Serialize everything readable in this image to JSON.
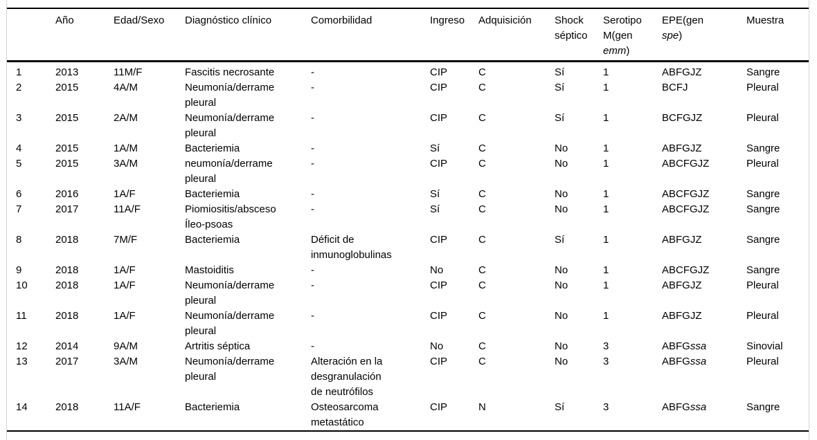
{
  "table": {
    "columns": [
      {
        "key": "num",
        "label": ""
      },
      {
        "key": "ano",
        "label": "Año"
      },
      {
        "key": "edad",
        "label": "Edad/Sexo"
      },
      {
        "key": "dx",
        "label": "Diagnóstico clínico"
      },
      {
        "key": "comorb",
        "label": "Comorbilidad"
      },
      {
        "key": "ingreso",
        "label": "Ingreso"
      },
      {
        "key": "adq",
        "label": "Adquisición"
      },
      {
        "key": "shock",
        "label": "Shock\nséptico"
      },
      {
        "key": "sero",
        "label_pre": "Serotipo\nM(gen\n",
        "label_italic": "emm",
        "label_post": ")"
      },
      {
        "key": "epe",
        "label_pre": "EPE(gen\n",
        "label_italic": "spe",
        "label_post": ")"
      },
      {
        "key": "muestra",
        "label": "Muestra"
      }
    ],
    "rows": [
      {
        "num": "1",
        "ano": "2013",
        "edad": "11M/F",
        "dx": "Fascitis necrosante",
        "comorb": "-",
        "ingreso": "CIP",
        "adq": "C",
        "shock": "Sí",
        "sero": "1",
        "epe": "ABFGJZ",
        "epe_italic": "",
        "muestra": "Sangre"
      },
      {
        "num": "2",
        "ano": "2015",
        "edad": "4A/M",
        "dx": "Neumonía/derrame\npleural",
        "comorb": "-",
        "ingreso": "CIP",
        "adq": "C",
        "shock": "Sí",
        "sero": "1",
        "epe": "BCFJ",
        "epe_italic": "",
        "muestra": "Pleural"
      },
      {
        "num": "3",
        "ano": "2015",
        "edad": "2A/M",
        "dx": "Neumonía/derrame\npleural",
        "comorb": "-",
        "ingreso": "CIP",
        "adq": "C",
        "shock": "Sí",
        "sero": "1",
        "epe": "BCFGJZ",
        "epe_italic": "",
        "muestra": "Pleural"
      },
      {
        "num": "4",
        "ano": "2015",
        "edad": "1A/M",
        "dx": "Bacteriemia",
        "comorb": "-",
        "ingreso": "Sí",
        "adq": "C",
        "shock": "No",
        "sero": "1",
        "epe": "ABFGJZ",
        "epe_italic": "",
        "muestra": "Sangre"
      },
      {
        "num": "5",
        "ano": "2015",
        "edad": "3A/M",
        "dx": "neumonía/derrame\npleural",
        "comorb": "-",
        "ingreso": "CIP",
        "adq": "C",
        "shock": "No",
        "sero": "1",
        "epe": "ABCFGJZ",
        "epe_italic": "",
        "muestra": "Pleural"
      },
      {
        "num": "6",
        "ano": "2016",
        "edad": "1A/F",
        "dx": "Bacteriemia",
        "comorb": "-",
        "ingreso": "Sí",
        "adq": "C",
        "shock": "No",
        "sero": "1",
        "epe": "ABCFGJZ",
        "epe_italic": "",
        "muestra": "Sangre"
      },
      {
        "num": "7",
        "ano": "2017",
        "edad": "11A/F",
        "dx": "Piomiositis/absceso\nÍleo-psoas",
        "comorb": "-",
        "ingreso": "Sí",
        "adq": "C",
        "shock": "No",
        "sero": "1",
        "epe": "ABCFGJZ",
        "epe_italic": "",
        "muestra": "Sangre"
      },
      {
        "num": "8",
        "ano": "2018",
        "edad": "7M/F",
        "dx": "Bacteriemia",
        "comorb": "Déficit de\ninmunoglobulinas",
        "ingreso": "CIP",
        "adq": "C",
        "shock": "Sí",
        "sero": "1",
        "epe": "ABFGJZ",
        "epe_italic": "",
        "muestra": "Sangre"
      },
      {
        "num": "9",
        "ano": "2018",
        "edad": "1A/F",
        "dx": "Mastoiditis",
        "comorb": "-",
        "ingreso": "No",
        "adq": "C",
        "shock": "No",
        "sero": "1",
        "epe": "ABCFGJZ",
        "epe_italic": "",
        "muestra": "Sangre"
      },
      {
        "num": "10",
        "ano": "2018",
        "edad": "1A/F",
        "dx": "Neumonía/derrame\npleural",
        "comorb": "-",
        "ingreso": "CIP",
        "adq": "C",
        "shock": "No",
        "sero": "1",
        "epe": "ABFGJZ",
        "epe_italic": "",
        "muestra": "Pleural"
      },
      {
        "num": "11",
        "ano": "2018",
        "edad": "1A/F",
        "dx": "Neumonía/derrame\npleural",
        "comorb": "-",
        "ingreso": "CIP",
        "adq": "C",
        "shock": "No",
        "sero": "1",
        "epe": "ABFGJZ",
        "epe_italic": "",
        "muestra": "Pleural"
      },
      {
        "num": "12",
        "ano": "2014",
        "edad": "9A/M",
        "dx": "Artritis séptica",
        "comorb": "-",
        "ingreso": "No",
        "adq": "C",
        "shock": "No",
        "sero": "3",
        "epe": "ABFG",
        "epe_italic": "ssa",
        "muestra": "Sinovial"
      },
      {
        "num": "13",
        "ano": "2017",
        "edad": "3A/M",
        "dx": "Neumonía/derrame\npleural",
        "comorb": "Alteración en la\ndesgranulación\nde neutrófilos",
        "ingreso": "CIP",
        "adq": "C",
        "shock": "No",
        "sero": "3",
        "epe": "ABFG",
        "epe_italic": "ssa",
        "muestra": "Pleural"
      },
      {
        "num": "14",
        "ano": "2018",
        "edad": "11A/F",
        "dx": "Bacteriemia",
        "comorb": "Osteosarcoma\nmetastático",
        "ingreso": "CIP",
        "adq": "N",
        "shock": "Sí",
        "sero": "3",
        "epe": "ABFG",
        "epe_italic": "ssa",
        "muestra": "Sangre"
      }
    ]
  }
}
